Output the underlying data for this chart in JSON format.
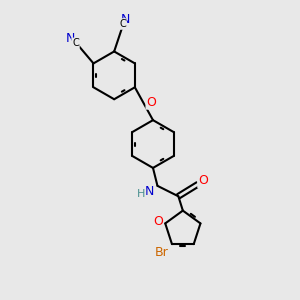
{
  "background_color": "#e8e8e8",
  "bond_color": "#000000",
  "bond_width": 1.5,
  "atom_colors": {
    "C": "#000000",
    "N": "#0000cd",
    "O": "#ff0000",
    "Br": "#cc6600",
    "H": "#4a9090",
    "NH": "#4a9090"
  },
  "font_size": 8,
  "fig_width": 3.0,
  "fig_height": 3.0,
  "dpi": 100,
  "xlim": [
    0,
    10
  ],
  "ylim": [
    0,
    10
  ]
}
